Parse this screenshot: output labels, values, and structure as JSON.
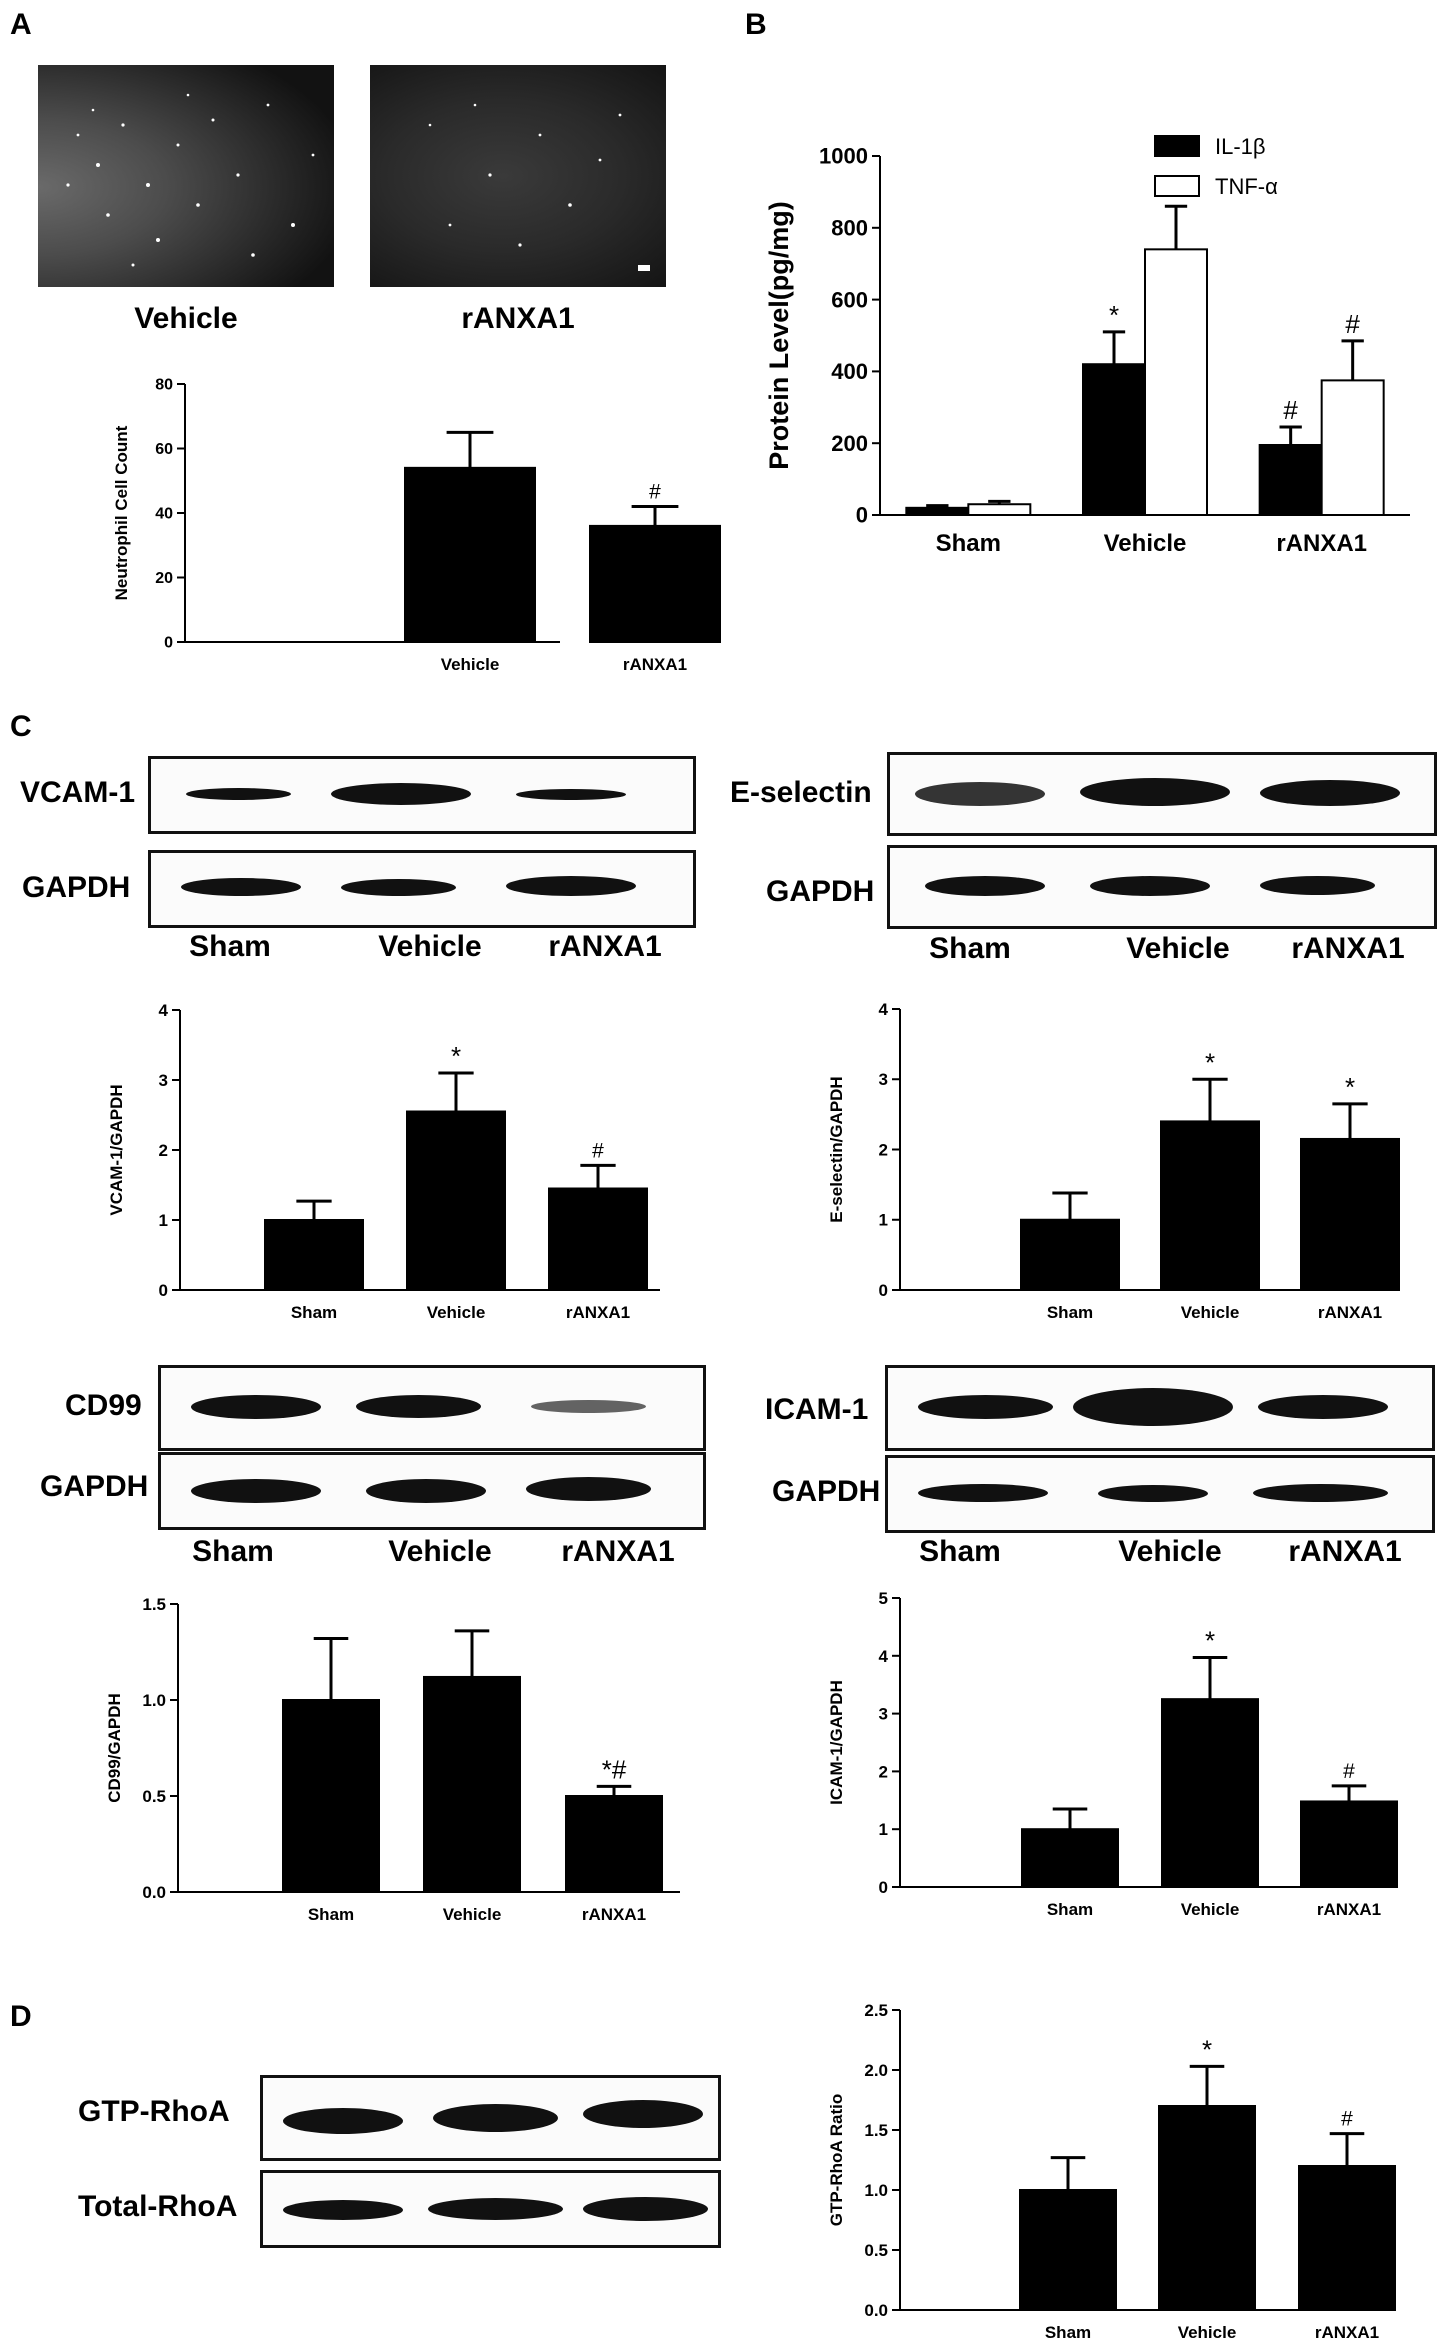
{
  "panel_labels": {
    "a": "A",
    "b": "B",
    "c": "C",
    "d": "D"
  },
  "micrographs": {
    "left_label": "Vehicle",
    "right_label": "rANXA1"
  },
  "blots": {
    "vcam": {
      "name": "VCAM-1"
    },
    "vcam_gapdh": {
      "name": "GAPDH"
    },
    "esel": {
      "name": "E-selectin"
    },
    "esel_gapdh": {
      "name": "GAPDH"
    },
    "cd99": {
      "name": "CD99"
    },
    "cd99_gapdh": {
      "name": "GAPDH"
    },
    "icam": {
      "name": "ICAM-1"
    },
    "icam_gapdh": {
      "name": "GAPDH"
    },
    "gtp": {
      "name": "GTP-RhoA"
    },
    "total": {
      "name": "Total-RhoA"
    }
  },
  "lane_labels": {
    "c1": [
      "Sham",
      "Vehicle",
      "rANXA1"
    ],
    "c2": [
      "Sham",
      "Vehicle",
      "rANXA1"
    ],
    "c3": [
      "Sham",
      "Vehicle",
      "rANXA1"
    ],
    "c4": [
      "Sham",
      "Vehicle",
      "rANXA1"
    ]
  },
  "chart_data": [
    {
      "id": "A",
      "type": "bar",
      "title": "",
      "xlabel": "",
      "ylabel": "Neutrophil Cell Count",
      "categories": [
        "Vehicle",
        "rANXA1"
      ],
      "values": [
        54,
        36
      ],
      "errors": [
        11,
        6
      ],
      "annotations": [
        "",
        "#"
      ],
      "ylim": [
        0,
        80
      ],
      "yticks": [
        "0",
        "20",
        "40",
        "60",
        "80"
      ],
      "colors": {
        "bar": "#000000"
      }
    },
    {
      "id": "B",
      "type": "bar",
      "title": "",
      "xlabel": "",
      "ylabel": "Protein Level(pg/mg)",
      "categories": [
        "Sham",
        "Vehicle",
        "rANXA1"
      ],
      "series": [
        {
          "name": "IL-1β",
          "values": [
            20,
            420,
            195
          ],
          "errors": [
            6,
            90,
            50
          ],
          "annotations": [
            "",
            "*",
            "#"
          ],
          "fill": "#000000"
        },
        {
          "name": "TNF-α",
          "values": [
            30,
            740,
            375
          ],
          "errors": [
            8,
            120,
            110
          ],
          "annotations": [
            "",
            "*",
            "#"
          ],
          "fill": "#ffffff"
        }
      ],
      "ylim": [
        0,
        1000
      ],
      "yticks": [
        "0",
        "200",
        "400",
        "600",
        "800",
        "1000"
      ],
      "legend": "top-right"
    },
    {
      "id": "C-VCAM",
      "type": "bar",
      "title": "",
      "xlabel": "",
      "ylabel": "VCAM-1/GAPDH",
      "categories": [
        "Sham",
        "Vehicle",
        "rANXA1"
      ],
      "values": [
        1.0,
        2.55,
        1.45
      ],
      "errors": [
        0.27,
        0.55,
        0.33
      ],
      "annotations": [
        "",
        "*",
        "#"
      ],
      "ylim": [
        0,
        4
      ],
      "yticks": [
        "0",
        "1",
        "2",
        "3",
        "4"
      ]
    },
    {
      "id": "C-Esel",
      "type": "bar",
      "title": "",
      "xlabel": "",
      "ylabel": "E-selectin/GAPDH",
      "categories": [
        "Sham",
        "Vehicle",
        "rANXA1"
      ],
      "values": [
        1.0,
        2.4,
        2.15
      ],
      "errors": [
        0.38,
        0.6,
        0.5
      ],
      "annotations": [
        "",
        "*",
        "*"
      ],
      "ylim": [
        0,
        4
      ],
      "yticks": [
        "0",
        "1",
        "2",
        "3",
        "4"
      ]
    },
    {
      "id": "C-CD99",
      "type": "bar",
      "title": "",
      "xlabel": "",
      "ylabel": "CD99/GAPDH",
      "categories": [
        "Sham",
        "Vehicle",
        "rANXA1"
      ],
      "values": [
        1.0,
        1.12,
        0.5
      ],
      "errors": [
        0.32,
        0.24,
        0.05
      ],
      "annotations": [
        "",
        "",
        "*#"
      ],
      "ylim": [
        0,
        1.5
      ],
      "yticks": [
        "0.0",
        "0.5",
        "1.0",
        "1.5"
      ]
    },
    {
      "id": "C-ICAM",
      "type": "bar",
      "title": "",
      "xlabel": "",
      "ylabel": "ICAM-1/GAPDH",
      "categories": [
        "Sham",
        "Vehicle",
        "rANXA1"
      ],
      "values": [
        1.0,
        3.25,
        1.48
      ],
      "errors": [
        0.35,
        0.72,
        0.27
      ],
      "annotations": [
        "",
        "*",
        "#"
      ],
      "ylim": [
        0,
        5
      ],
      "yticks": [
        "0",
        "1",
        "2",
        "3",
        "4",
        "5"
      ]
    },
    {
      "id": "D",
      "type": "bar",
      "title": "",
      "xlabel": "",
      "ylabel": "GTP-RhoA Ratio",
      "categories": [
        "Sham",
        "Vehicle",
        "rANXA1"
      ],
      "values": [
        1.0,
        1.7,
        1.2
      ],
      "errors": [
        0.27,
        0.33,
        0.27
      ],
      "annotations": [
        "",
        "*",
        "#"
      ],
      "ylim": [
        0,
        2.5
      ],
      "yticks": [
        "0.0",
        "0.5",
        "1.0",
        "1.5",
        "2.0",
        "2.5"
      ]
    }
  ]
}
